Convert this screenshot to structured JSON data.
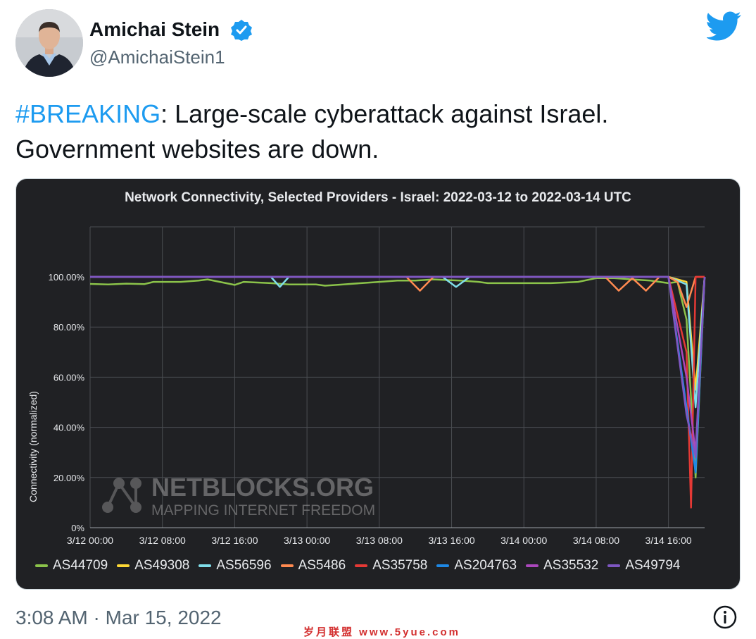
{
  "author": {
    "name": "Amichai Stein",
    "handle": "@AmichaiStein1",
    "verified_icon": "verified-badge-icon",
    "avatar": "profile-photo"
  },
  "brand_icon": "twitter-bird-icon",
  "tweet": {
    "hashtag": "#BREAKING",
    "text_rest": ": Large-scale cyberattack against Israel. Government websites are down."
  },
  "timestamp": "3:08 AM · Mar 15, 2022",
  "info_icon": "info-icon",
  "watermark": {
    "logo": "NETBLOCKS.ORG",
    "tagline": "MAPPING INTERNET FREEDOM",
    "footer": "岁月联盟 www.5yue.com"
  },
  "colors": {
    "brand_blue": "#1d9bf0",
    "chart_bg": "#202124"
  },
  "chart_data": {
    "type": "line",
    "title": "Network Connectivity, Selected Providers - Israel: 2022-03-12 to 2022-03-14 UTC",
    "xlabel": "",
    "ylabel": "Connectivity (normalized)",
    "x_ticks": [
      "3/12 00:00",
      "3/12 08:00",
      "3/12 16:00",
      "3/13 00:00",
      "3/13 08:00",
      "3/13 16:00",
      "3/14 00:00",
      "3/14 08:00",
      "3/14 16:00"
    ],
    "y_ticks": [
      "0%",
      "20.00%",
      "40.00%",
      "60.00%",
      "80.00%",
      "100.00%"
    ],
    "ylim": [
      0,
      120
    ],
    "x_hours_range": [
      0,
      68
    ],
    "grid": true,
    "legend_position": "bottom",
    "series": [
      {
        "name": "AS44709",
        "color": "#8bc34a",
        "points": [
          [
            0,
            97.2
          ],
          [
            2,
            97
          ],
          [
            4,
            97.3
          ],
          [
            6,
            97.1
          ],
          [
            7,
            98
          ],
          [
            10,
            98
          ],
          [
            12,
            98.5
          ],
          [
            13,
            99
          ],
          [
            16,
            96.8
          ],
          [
            17,
            98
          ],
          [
            20,
            97.5
          ],
          [
            22,
            97
          ],
          [
            25,
            97
          ],
          [
            26,
            96.5
          ],
          [
            28,
            97
          ],
          [
            30,
            97.5
          ],
          [
            32,
            98
          ],
          [
            34,
            98.5
          ],
          [
            36,
            98.5
          ],
          [
            38,
            99
          ],
          [
            41,
            98.5
          ],
          [
            43,
            98
          ],
          [
            44,
            97.5
          ],
          [
            48,
            97.5
          ],
          [
            51,
            97.5
          ],
          [
            54,
            98
          ],
          [
            56,
            99.5
          ],
          [
            58,
            99.5
          ],
          [
            60,
            99
          ],
          [
            62,
            98.5
          ],
          [
            64,
            97.5
          ],
          [
            65,
            98
          ],
          [
            66,
            83
          ],
          [
            67,
            20
          ],
          [
            68,
            100
          ]
        ]
      },
      {
        "name": "AS49308",
        "color": "#fdd835",
        "points": [
          [
            0,
            100
          ],
          [
            64,
            100
          ],
          [
            66,
            98
          ],
          [
            67,
            55
          ],
          [
            68,
            100
          ]
        ]
      },
      {
        "name": "AS56596",
        "color": "#80deea",
        "points": [
          [
            0,
            100
          ],
          [
            20,
            100
          ],
          [
            21,
            96
          ],
          [
            22,
            100
          ],
          [
            39,
            100
          ],
          [
            40.5,
            96
          ],
          [
            42,
            100
          ],
          [
            64,
            100
          ],
          [
            66,
            97
          ],
          [
            67,
            48
          ],
          [
            68,
            100
          ]
        ]
      },
      {
        "name": "AS5486",
        "color": "#ff8a50",
        "points": [
          [
            0,
            100
          ],
          [
            35,
            100
          ],
          [
            36.5,
            94.5
          ],
          [
            38,
            100
          ],
          [
            57,
            100
          ],
          [
            58.5,
            94.5
          ],
          [
            60,
            99.5
          ],
          [
            61.5,
            94.5
          ],
          [
            63,
            100
          ],
          [
            64,
            100
          ],
          [
            65,
            98
          ],
          [
            66,
            88
          ],
          [
            67,
            100
          ],
          [
            68,
            100
          ]
        ]
      },
      {
        "name": "AS35758",
        "color": "#e53935",
        "points": [
          [
            0,
            100
          ],
          [
            64,
            100
          ],
          [
            66,
            70
          ],
          [
            66.5,
            8
          ],
          [
            67,
            100
          ],
          [
            68,
            100
          ]
        ]
      },
      {
        "name": "AS204763",
        "color": "#1e88e5",
        "points": [
          [
            0,
            100
          ],
          [
            64,
            100
          ],
          [
            66,
            48
          ],
          [
            67,
            22
          ],
          [
            68,
            100
          ]
        ]
      },
      {
        "name": "AS35532",
        "color": "#ab47bc",
        "points": [
          [
            0,
            100
          ],
          [
            64,
            100
          ],
          [
            66,
            60
          ],
          [
            67,
            30
          ],
          [
            68,
            100
          ]
        ]
      },
      {
        "name": "AS49794",
        "color": "#7e57c2",
        "points": [
          [
            0,
            100
          ],
          [
            64,
            100
          ],
          [
            66,
            45
          ],
          [
            67,
            28
          ],
          [
            68,
            100
          ]
        ]
      }
    ]
  }
}
